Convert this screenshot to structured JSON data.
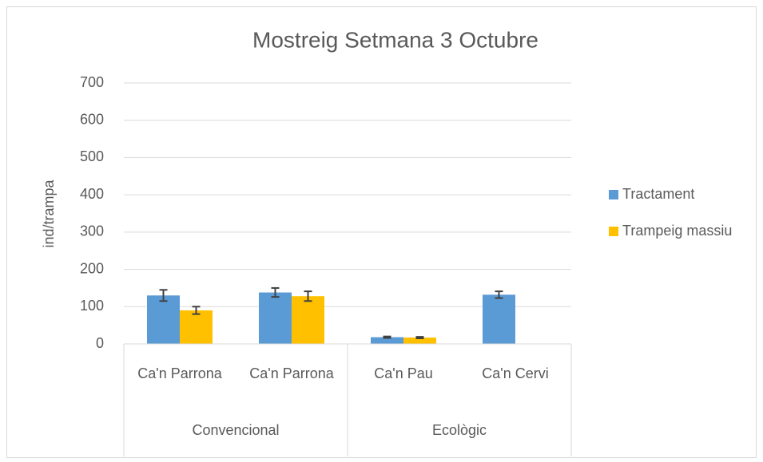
{
  "chart_data": {
    "type": "bar",
    "title": "Mostreig Setmana 3 Octubre",
    "y_label": "ind/trampa",
    "groups": [
      {
        "name": "Convencional",
        "categories": [
          "Ca'n Parrona",
          "Ca'n Parrona"
        ]
      },
      {
        "name": "Ecològic",
        "categories": [
          "Ca'n Pau",
          "Ca'n Cervi"
        ]
      }
    ],
    "series": [
      {
        "name": "Tractament",
        "color": "#5b9bd5",
        "values": [
          130,
          138,
          18,
          132
        ],
        "errors": [
          15,
          12,
          2,
          9
        ]
      },
      {
        "name": "Trampeig massiu",
        "color": "#ffc000",
        "values": [
          90,
          128,
          17,
          null
        ],
        "errors": [
          10,
          13,
          2,
          null
        ]
      }
    ],
    "ylim": [
      0,
      700
    ],
    "yticks": [
      0,
      100,
      200,
      300,
      400,
      500,
      600,
      700
    ],
    "grid": true,
    "legend": "right"
  }
}
